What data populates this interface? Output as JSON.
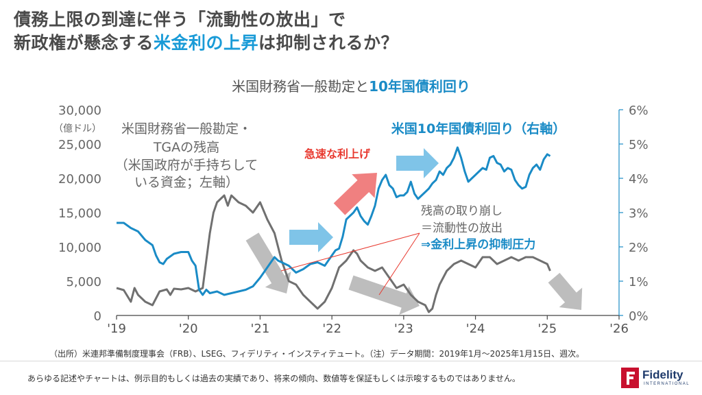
{
  "header": {
    "title_line1": "債務上限の到達に伴う「流動性の放出」で",
    "title_line2_a": "新政権が懸念する",
    "title_line2_hl": "米金利の上昇",
    "title_line2_b": "は抑制されるか？",
    "subtitle_a": "米国財務省一般勘定と",
    "subtitle_hl": "10年国債利回り"
  },
  "chart_data": {
    "type": "line",
    "x_range": [
      "2019-01",
      "2026-01"
    ],
    "x_ticks": [
      "'19",
      "'20",
      "'21",
      "'22",
      "'23",
      "'24",
      "'25",
      "'26"
    ],
    "y_left": {
      "range": [
        0,
        30000
      ],
      "ticks": [
        "0",
        "5,000",
        "10,000",
        "15,000",
        "20,000",
        "25,000",
        "30,000"
      ],
      "unit": "（億ドル）"
    },
    "y_right": {
      "range": [
        0,
        6
      ],
      "ticks": [
        "0%",
        "1%",
        "2%",
        "3%",
        "4%",
        "5%",
        "6%"
      ]
    },
    "grid": false,
    "series": [
      {
        "name": "米国財務省一般勘定・TGAの残高（米国政府が手持ちしている資金；左軸）",
        "axis": "left",
        "color": "#707070",
        "x": [
          2019.0,
          2019.1,
          2019.2,
          2019.25,
          2019.3,
          2019.4,
          2019.5,
          2019.55,
          2019.6,
          2019.7,
          2019.75,
          2019.8,
          2019.9,
          2020.0,
          2020.1,
          2020.2,
          2020.25,
          2020.3,
          2020.35,
          2020.4,
          2020.45,
          2020.5,
          2020.55,
          2020.6,
          2020.7,
          2020.8,
          2020.9,
          2021.0,
          2021.1,
          2021.2,
          2021.3,
          2021.4,
          2021.5,
          2021.6,
          2021.7,
          2021.8,
          2021.9,
          2022.0,
          2022.1,
          2022.2,
          2022.3,
          2022.35,
          2022.4,
          2022.5,
          2022.6,
          2022.7,
          2022.8,
          2022.9,
          2023.0,
          2023.1,
          2023.2,
          2023.3,
          2023.35,
          2023.4,
          2023.45,
          2023.5,
          2023.6,
          2023.7,
          2023.8,
          2023.9,
          2024.0,
          2024.1,
          2024.2,
          2024.3,
          2024.4,
          2024.5,
          2024.6,
          2024.7,
          2024.8,
          2024.9,
          2025.0,
          2025.04
        ],
        "values": [
          4000,
          3700,
          2000,
          4000,
          3000,
          2000,
          1500,
          2500,
          3500,
          3800,
          3000,
          3900,
          3800,
          4000,
          3500,
          4000,
          8000,
          12000,
          15000,
          16500,
          17000,
          17500,
          16000,
          17500,
          16500,
          16000,
          15000,
          16500,
          14000,
          12000,
          8000,
          5000,
          4500,
          3000,
          2000,
          1000,
          2000,
          4000,
          7000,
          8000,
          9500,
          9000,
          8000,
          7000,
          6500,
          7000,
          5500,
          4000,
          4500,
          3000,
          2000,
          1500,
          500,
          1000,
          3000,
          4500,
          6500,
          7500,
          8000,
          7500,
          7000,
          8500,
          8500,
          7500,
          8000,
          8500,
          8000,
          8500,
          8500,
          8000,
          7500,
          6500
        ]
      },
      {
        "name": "米国10年国債利回り（右軸）",
        "axis": "right",
        "color": "#1a8bc6",
        "x": [
          2019.0,
          2019.1,
          2019.2,
          2019.3,
          2019.4,
          2019.5,
          2019.55,
          2019.6,
          2019.65,
          2019.7,
          2019.8,
          2019.9,
          2020.0,
          2020.05,
          2020.1,
          2020.15,
          2020.2,
          2020.25,
          2020.3,
          2020.4,
          2020.5,
          2020.6,
          2020.7,
          2020.8,
          2020.9,
          2021.0,
          2021.1,
          2021.15,
          2021.2,
          2021.25,
          2021.3,
          2021.4,
          2021.5,
          2021.6,
          2021.7,
          2021.8,
          2021.9,
          2022.0,
          2022.05,
          2022.1,
          2022.15,
          2022.2,
          2022.25,
          2022.3,
          2022.35,
          2022.4,
          2022.45,
          2022.5,
          2022.55,
          2022.6,
          2022.65,
          2022.7,
          2022.75,
          2022.8,
          2022.85,
          2022.9,
          2022.95,
          2023.0,
          2023.05,
          2023.1,
          2023.15,
          2023.2,
          2023.25,
          2023.3,
          2023.35,
          2023.4,
          2023.45,
          2023.5,
          2023.55,
          2023.6,
          2023.65,
          2023.7,
          2023.75,
          2023.8,
          2023.85,
          2023.9,
          2023.95,
          2024.0,
          2024.05,
          2024.1,
          2024.15,
          2024.2,
          2024.25,
          2024.3,
          2024.35,
          2024.4,
          2024.45,
          2024.5,
          2024.55,
          2024.6,
          2024.65,
          2024.7,
          2024.75,
          2024.8,
          2024.85,
          2024.9,
          2024.95,
          2025.0,
          2025.04
        ],
        "values": [
          2.7,
          2.7,
          2.55,
          2.45,
          2.2,
          2.05,
          1.75,
          1.55,
          1.5,
          1.65,
          1.8,
          1.85,
          1.85,
          1.6,
          1.45,
          0.75,
          0.6,
          0.75,
          0.65,
          0.7,
          0.6,
          0.65,
          0.7,
          0.75,
          0.85,
          1.1,
          1.4,
          1.55,
          1.7,
          1.6,
          1.55,
          1.45,
          1.25,
          1.35,
          1.5,
          1.55,
          1.45,
          1.75,
          1.9,
          1.95,
          2.3,
          2.8,
          2.9,
          3.0,
          3.15,
          2.9,
          2.75,
          2.65,
          2.9,
          3.2,
          3.7,
          3.95,
          4.1,
          3.8,
          3.7,
          3.45,
          3.5,
          3.5,
          3.6,
          3.9,
          3.55,
          3.4,
          3.5,
          3.6,
          3.7,
          3.85,
          3.95,
          4.2,
          4.1,
          4.3,
          4.4,
          4.6,
          4.9,
          4.6,
          4.2,
          3.9,
          4.0,
          4.1,
          4.2,
          4.3,
          4.25,
          4.6,
          4.65,
          4.45,
          4.4,
          4.2,
          4.3,
          4.25,
          3.95,
          3.8,
          3.7,
          3.75,
          4.1,
          4.3,
          4.4,
          4.25,
          4.55,
          4.7,
          4.65
        ]
      }
    ],
    "annotations": {
      "tga_label_lines": [
        "米国財務省一般勘定・",
        "TGAの残高",
        "（米国政府が手持ちして",
        "いる資金；左軸）"
      ],
      "yield_label": "米国10年国債利回り（右軸）",
      "rapid_hike": "急速な利上げ",
      "drawdown_lines": [
        "残高の取り崩し",
        "＝流動性の放出",
        "⇒金利上昇の抑制圧力"
      ]
    }
  },
  "footer": {
    "source": "（出所）米連邦準備制度理事会（FRB）、LSEG、フィデリティ・インスティテュート。（注）データ期間：2019年1月～2025年1月15日、週次。",
    "disclaimer": "あらゆる記述やチャートは、例示目的もしくは過去の実績であり、将来の傾向、数値等を保証もしくは示唆するものではありません。",
    "logo_name": "Fidelity",
    "logo_sub": "INTERNATIONAL"
  },
  "colors": {
    "accent_blue": "#1a8bc6",
    "tga_gray": "#707070",
    "red": "#e8392f",
    "arrow_blue": "#7fc4e8",
    "arrow_gray": "#bdbdbd",
    "arrow_red": "#f08080"
  }
}
